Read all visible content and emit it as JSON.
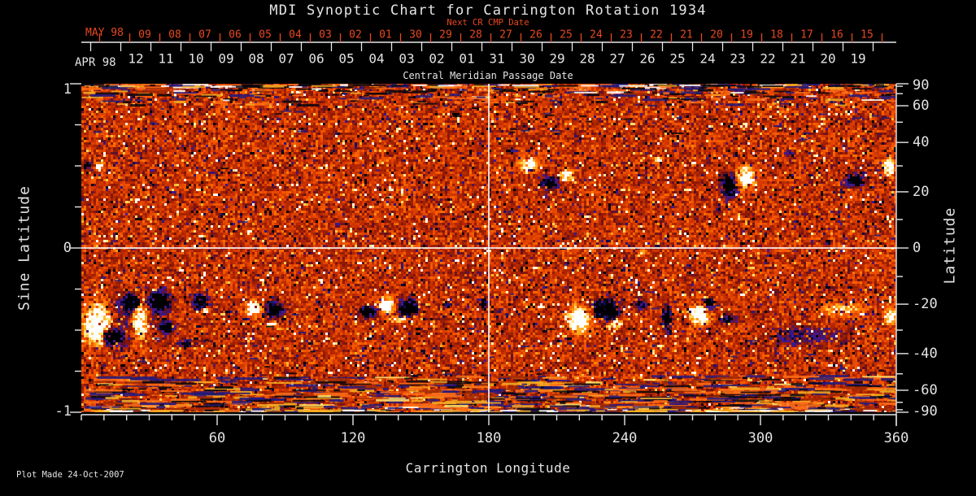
{
  "title": "MDI Synoptic Chart for Carrington Rotation 1934",
  "footer": {
    "plot_made": "Plot Made 24-Oct-2007"
  },
  "colors": {
    "background": "#000000",
    "text": "#e4e4e4",
    "accent_red": "#e8481f",
    "axis": "#e8e8e8",
    "reference_line": "#ffffff"
  },
  "top_axis": {
    "month_top": "MAY 98",
    "month_bottom": "APR 98",
    "next_cr_label": "Next CR CMP Date",
    "cmp_label": "Central Meridian Passage Date",
    "next_cr_days": [
      "09",
      "08",
      "07",
      "06",
      "05",
      "04",
      "03",
      "02",
      "01",
      "30",
      "29",
      "28",
      "27",
      "26",
      "25",
      "24",
      "23",
      "22",
      "21",
      "20",
      "19",
      "18",
      "17",
      "16",
      "15"
    ],
    "cmp_days": [
      "12",
      "11",
      "10",
      "09",
      "08",
      "07",
      "06",
      "05",
      "04",
      "03",
      "02",
      "01",
      "31",
      "30",
      "29",
      "28",
      "27",
      "26",
      "25",
      "24",
      "23",
      "22",
      "21",
      "20",
      "19"
    ]
  },
  "left_axis": {
    "label": "Sine Latitude",
    "tick_labels": [
      "1",
      "0",
      "-1"
    ],
    "tick_values": [
      1,
      0,
      -1
    ],
    "minor_step": 0.25,
    "range": [
      -1,
      1
    ]
  },
  "right_axis": {
    "label": "Latitude",
    "tick_labels": [
      "90",
      "60",
      "40",
      "20",
      "0",
      "-20",
      "-40",
      "-60",
      "-90"
    ],
    "tick_values": [
      90,
      60,
      40,
      20,
      0,
      -20,
      -40,
      -60,
      -90
    ],
    "minor_step_deg": 10
  },
  "bottom_axis": {
    "label": "Carrington Longitude",
    "tick_labels": [
      "60",
      "120",
      "180",
      "240",
      "300",
      "360"
    ],
    "tick_values": [
      60,
      120,
      180,
      240,
      300,
      360
    ],
    "minor_step_deg": 10,
    "range": [
      0,
      360
    ]
  },
  "chart_data": {
    "type": "heatmap",
    "title": "MDI Synoptic Chart for Carrington Rotation 1934",
    "xlabel": "Carrington Longitude",
    "ylabel_left": "Sine Latitude",
    "ylabel_right": "Latitude",
    "xlim": [
      0,
      360
    ],
    "ylim_sine_latitude": [
      -1,
      1
    ],
    "colormap": "red-temperature magnetogram: orange = quiet sun, white/yellow = positive magnetic field, black/navy = negative magnetic field",
    "reference_lines": {
      "longitude_deg": 180,
      "sine_latitude": 0
    },
    "grid": false,
    "seed": 1934,
    "positive_stops": [
      [
        0,
        200,
        48,
        0
      ],
      [
        0.18,
        240,
        80,
        0
      ],
      [
        0.35,
        255,
        115,
        0
      ],
      [
        0.55,
        255,
        170,
        30
      ],
      [
        0.72,
        255,
        215,
        90
      ],
      [
        0.85,
        255,
        245,
        185
      ],
      [
        1,
        255,
        255,
        255
      ]
    ],
    "negative_stops": [
      [
        0,
        195,
        45,
        0
      ],
      [
        0.18,
        140,
        25,
        5
      ],
      [
        0.32,
        95,
        15,
        40
      ],
      [
        0.45,
        70,
        25,
        150
      ],
      [
        0.58,
        45,
        25,
        130
      ],
      [
        0.72,
        15,
        10,
        70
      ],
      [
        0.85,
        3,
        3,
        20
      ],
      [
        1,
        0,
        0,
        0
      ]
    ],
    "polar_banding": "horizontal dark/gold streaks near |sine latitude| > 0.85, strongest at south edge",
    "active_regions": [
      [
        2.9,
        0.5,
        1.8,
        0.02,
        -2.0
      ],
      [
        7.5,
        0.5,
        1.8,
        0.02,
        2.2
      ],
      [
        197.6,
        0.505,
        4.3,
        0.035,
        1.4
      ],
      [
        206.6,
        0.396,
        4.3,
        0.04,
        -1.2
      ],
      [
        214.5,
        0.441,
        2.9,
        0.03,
        1.5
      ],
      [
        189.7,
        0.594,
        2.2,
        0.02,
        -1.0
      ],
      [
        255.1,
        0.54,
        1.8,
        0.015,
        1.6
      ],
      [
        286.3,
        0.381,
        3.2,
        0.064,
        -2.2
      ],
      [
        293.2,
        0.431,
        3.6,
        0.059,
        2.3
      ],
      [
        341.3,
        0.411,
        4.3,
        0.04,
        -1.6
      ],
      [
        356.8,
        0.495,
        2.2,
        0.05,
        1.8
      ],
      [
        312.6,
        0.579,
        1.8,
        0.015,
        -0.9
      ],
      [
        7.2,
        -0.46,
        5.7,
        0.109,
        2.3
      ],
      [
        13.7,
        -0.545,
        4.3,
        0.045,
        -2.2
      ],
      [
        22.3,
        -0.337,
        4.0,
        0.054,
        -2.0
      ],
      [
        25.9,
        -0.436,
        3.2,
        0.109,
        2.2
      ],
      [
        34.9,
        -0.327,
        4.7,
        0.054,
        -2.2
      ],
      [
        37.7,
        -0.485,
        2.9,
        0.035,
        -1.6
      ],
      [
        52.8,
        -0.327,
        3.2,
        0.045,
        -1.8
      ],
      [
        55.3,
        -0.376,
        1.4,
        0.02,
        1.6
      ],
      [
        46.7,
        -0.584,
        3.6,
        0.02,
        -1.1
      ],
      [
        76.2,
        -0.371,
        2.9,
        0.04,
        1.9
      ],
      [
        85.5,
        -0.376,
        3.6,
        0.045,
        -2.1
      ],
      [
        84.1,
        -0.465,
        2.2,
        0.015,
        1.5
      ],
      [
        126.5,
        -0.386,
        3.2,
        0.035,
        -1.9
      ],
      [
        134.7,
        -0.347,
        3.2,
        0.045,
        2.0
      ],
      [
        144.4,
        -0.366,
        4.0,
        0.045,
        -2.1
      ],
      [
        140.1,
        -0.436,
        5.0,
        0.02,
        0.9
      ],
      [
        161.0,
        -0.337,
        1.4,
        0.02,
        -1.2
      ],
      [
        177.8,
        -0.337,
        1.8,
        0.025,
        -1.3
      ],
      [
        219.9,
        -0.436,
        4.3,
        0.069,
        2.2
      ],
      [
        231.7,
        -0.376,
        5.0,
        0.059,
        -2.2
      ],
      [
        236.1,
        -0.46,
        2.2,
        0.025,
        1.8
      ],
      [
        247.2,
        -0.347,
        2.2,
        0.025,
        -1.6
      ],
      [
        258.7,
        -0.421,
        1.8,
        0.069,
        -1.9
      ],
      [
        273.1,
        -0.411,
        4.0,
        0.054,
        2.1
      ],
      [
        277.4,
        -0.337,
        2.5,
        0.03,
        -1.9
      ],
      [
        285.6,
        -0.436,
        2.9,
        0.025,
        -1.4
      ],
      [
        319.8,
        -0.535,
        16.2,
        0.059,
        -0.55
      ],
      [
        337.7,
        -0.376,
        9.0,
        0.04,
        0.75
      ],
      [
        357.5,
        -0.411,
        2.2,
        0.045,
        1.9
      ],
      [
        247.9,
        -0.025,
        1.4,
        0.015,
        1.5
      ],
      [
        21.6,
        -0.446,
        14.4,
        0.124,
        -0.35
      ]
    ]
  }
}
